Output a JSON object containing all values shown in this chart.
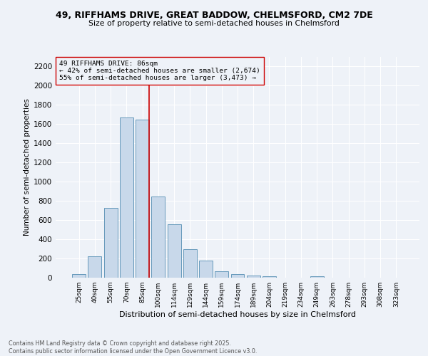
{
  "title1": "49, RIFFHAMS DRIVE, GREAT BADDOW, CHELMSFORD, CM2 7DE",
  "title2": "Size of property relative to semi-detached houses in Chelmsford",
  "xlabel": "Distribution of semi-detached houses by size in Chelmsford",
  "ylabel": "Number of semi-detached properties",
  "bin_labels": [
    "25sqm",
    "40sqm",
    "55sqm",
    "70sqm",
    "85sqm",
    "100sqm",
    "114sqm",
    "129sqm",
    "144sqm",
    "159sqm",
    "174sqm",
    "189sqm",
    "204sqm",
    "219sqm",
    "234sqm",
    "249sqm",
    "263sqm",
    "278sqm",
    "293sqm",
    "308sqm",
    "323sqm"
  ],
  "bar_values": [
    40,
    225,
    730,
    1670,
    1650,
    845,
    555,
    295,
    180,
    65,
    35,
    25,
    15,
    0,
    0,
    15,
    0,
    0,
    0,
    0,
    0
  ],
  "bar_color": "#c8d8ea",
  "bar_edge_color": "#6699bb",
  "red_line_color": "#cc0000",
  "box_edge_color": "#cc0000",
  "property_line_label": "49 RIFFHAMS DRIVE: 86sqm",
  "annotation_smaller": "← 42% of semi-detached houses are smaller (2,674)",
  "annotation_larger": "55% of semi-detached houses are larger (3,473) →",
  "ylim": [
    0,
    2300
  ],
  "yticks": [
    0,
    200,
    400,
    600,
    800,
    1000,
    1200,
    1400,
    1600,
    1800,
    2000,
    2200
  ],
  "footer1": "Contains HM Land Registry data © Crown copyright and database right 2025.",
  "footer2": "Contains public sector information licensed under the Open Government Licence v3.0.",
  "bg_color": "#eef2f8",
  "grid_color": "#ffffff",
  "line_x_index": 4.42
}
